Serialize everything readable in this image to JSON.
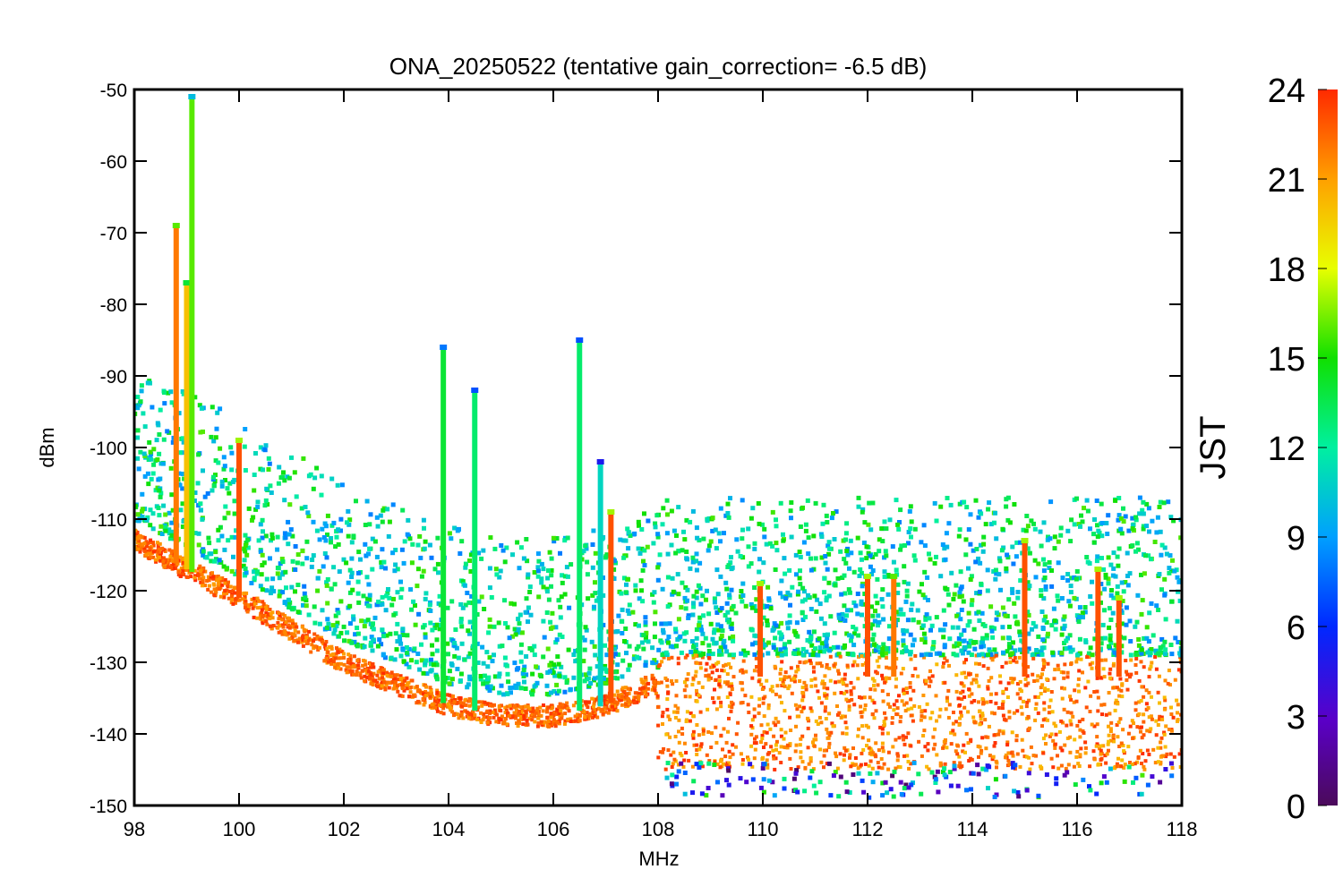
{
  "chart_data": {
    "type": "scatter",
    "title": "ONA_20250522 (tentative gain_correction= -6.5 dB)",
    "xlabel": "MHz",
    "ylabel": "dBm",
    "xlim": [
      98,
      118
    ],
    "ylim": [
      -150,
      -50
    ],
    "xticks": [
      "98",
      "100",
      "102",
      "104",
      "106",
      "108",
      "110",
      "112",
      "114",
      "116",
      "118"
    ],
    "yticks": [
      "-50",
      "-60",
      "-70",
      "-80",
      "-90",
      "-100",
      "-110",
      "-120",
      "-130",
      "-140",
      "-150"
    ],
    "grid": false,
    "colorbar": {
      "label": "JST",
      "range": [
        0,
        24
      ],
      "ticks": [
        "0",
        "3",
        "6",
        "9",
        "12",
        "15",
        "18",
        "21",
        "24"
      ],
      "colormap": "rainbow (purple-blue-cyan-green-yellow-orange-red)"
    },
    "noise_floor": [
      {
        "x": 98.0,
        "y": -113
      },
      {
        "x": 100.0,
        "y": -121
      },
      {
        "x": 102.0,
        "y": -130
      },
      {
        "x": 104.0,
        "y": -136
      },
      {
        "x": 105.0,
        "y": -137.5
      },
      {
        "x": 106.0,
        "y": -137.5
      },
      {
        "x": 107.0,
        "y": -136
      },
      {
        "x": 107.95,
        "y": -133
      },
      {
        "x": 108.0,
        "y": -135
      },
      {
        "x": 118.0,
        "y": -135
      }
    ],
    "floor_band_above_108_dbm": [
      -145,
      -129
    ],
    "signals": [
      {
        "freq": 98.8,
        "peak": -69,
        "jst": 22
      },
      {
        "freq": 99.0,
        "peak": -77,
        "jst": 20
      },
      {
        "freq": 99.1,
        "peak": -51,
        "jst": 16
      },
      {
        "freq": 100.0,
        "peak": -99,
        "jst": 23
      },
      {
        "freq": 103.9,
        "peak": -86,
        "jst": 14
      },
      {
        "freq": 104.5,
        "peak": -92,
        "jst": 13
      },
      {
        "freq": 106.5,
        "peak": -85,
        "jst": 13
      },
      {
        "freq": 106.9,
        "peak": -102,
        "jst": 11
      },
      {
        "freq": 107.1,
        "peak": -109,
        "jst": 23
      },
      {
        "freq": 109.95,
        "peak": -119,
        "jst": 23
      },
      {
        "freq": 112.0,
        "peak": -118,
        "jst": 23
      },
      {
        "freq": 112.5,
        "peak": -118,
        "jst": 22
      },
      {
        "freq": 115.0,
        "peak": -113,
        "jst": 23
      },
      {
        "freq": 116.4,
        "peak": -117,
        "jst": 23
      },
      {
        "freq": 116.8,
        "peak": -121,
        "jst": 23
      }
    ]
  }
}
